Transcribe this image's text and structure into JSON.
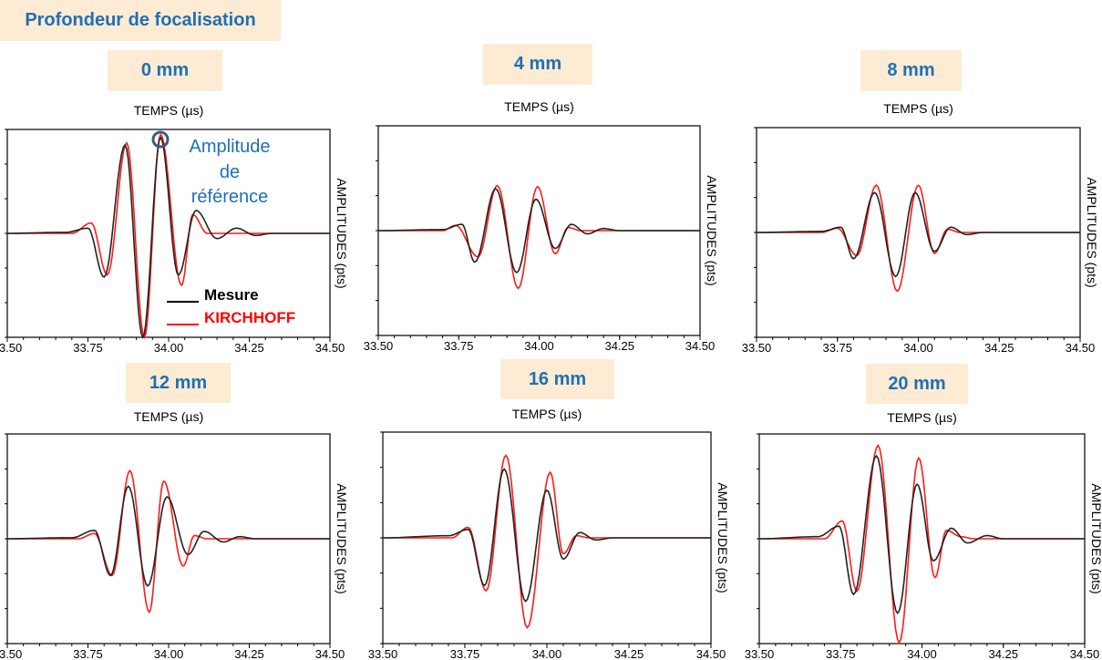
{
  "title": "Profondeur de focalisation",
  "colors": {
    "mesure": "#222222",
    "kirchhoff": "#ff1a1a",
    "label_bg": "#fdebd3",
    "label_text": "#1f6fb5",
    "annotation": "#1f6fb5",
    "circle": "#3d5a80"
  },
  "annotation": {
    "line1": "Amplitude",
    "line2": "de",
    "line3": "référence"
  },
  "legend": {
    "mesure": "Mesure",
    "kirchhoff": "KIRCHHOFF"
  },
  "chart_data": [
    {
      "type": "line",
      "label": "0 mm",
      "xlabel": "TEMPS (µs)",
      "ylabel": "AMPLITUDES (pts)",
      "xlim": [
        33.5,
        34.5
      ],
      "xticks": [
        "33.50",
        "33.75",
        "34.00",
        "34.25",
        "34.50"
      ],
      "ylim": [
        -1,
        1
      ],
      "series": [
        {
          "name": "Mesure",
          "points": [
            [
              33.5,
              0
            ],
            [
              33.68,
              0.01
            ],
            [
              33.75,
              0.05
            ],
            [
              33.8,
              -0.42
            ],
            [
              33.865,
              0.85
            ],
            [
              33.92,
              -1.0
            ],
            [
              33.975,
              0.92
            ],
            [
              34.03,
              -0.4
            ],
            [
              34.085,
              0.22
            ],
            [
              34.15,
              -0.05
            ],
            [
              34.21,
              0.05
            ],
            [
              34.27,
              -0.02
            ],
            [
              34.32,
              0
            ],
            [
              34.5,
              0
            ]
          ]
        },
        {
          "name": "KIRCHHOFF",
          "points": [
            [
              33.5,
              0
            ],
            [
              33.7,
              0
            ],
            [
              33.76,
              0.1
            ],
            [
              33.81,
              -0.4
            ],
            [
              33.87,
              0.87
            ],
            [
              33.925,
              -1.0
            ],
            [
              33.975,
              0.95
            ],
            [
              34.04,
              -0.5
            ],
            [
              34.075,
              0.18
            ],
            [
              34.12,
              0
            ],
            [
              34.5,
              0
            ]
          ]
        }
      ]
    },
    {
      "type": "line",
      "label": "4 mm",
      "xlabel": "TEMPS (µs)",
      "ylabel": "AMPLITUDES (pts)",
      "xlim": [
        33.5,
        34.5
      ],
      "xticks": [
        "33.50",
        "33.75",
        "34.00",
        "34.25",
        "34.50"
      ],
      "ylim": [
        -1,
        1
      ],
      "series": [
        {
          "name": "Mesure",
          "points": [
            [
              33.5,
              0
            ],
            [
              33.7,
              0.01
            ],
            [
              33.76,
              0.06
            ],
            [
              33.8,
              -0.3
            ],
            [
              33.865,
              0.4
            ],
            [
              33.93,
              -0.4
            ],
            [
              33.99,
              0.3
            ],
            [
              34.05,
              -0.17
            ],
            [
              34.1,
              0.06
            ],
            [
              34.15,
              -0.03
            ],
            [
              34.2,
              0.02
            ],
            [
              34.25,
              0
            ],
            [
              34.5,
              0
            ]
          ]
        },
        {
          "name": "KIRCHHOFF",
          "points": [
            [
              33.5,
              0
            ],
            [
              33.7,
              0
            ],
            [
              33.74,
              0.05
            ],
            [
              33.81,
              -0.25
            ],
            [
              33.87,
              0.43
            ],
            [
              33.935,
              -0.55
            ],
            [
              33.995,
              0.42
            ],
            [
              34.05,
              -0.22
            ],
            [
              34.09,
              0.03
            ],
            [
              34.13,
              0
            ],
            [
              34.5,
              0
            ]
          ]
        }
      ]
    },
    {
      "type": "line",
      "label": "8 mm",
      "xlabel": "TEMPS (µs)",
      "ylabel": "AMPLITUDES (pts)",
      "xlim": [
        33.5,
        34.5
      ],
      "xticks": [
        "33.50",
        "33.75",
        "34.00",
        "34.25",
        "34.50"
      ],
      "ylim": [
        -1,
        1
      ],
      "series": [
        {
          "name": "Mesure",
          "points": [
            [
              33.5,
              0
            ],
            [
              33.7,
              0.01
            ],
            [
              33.76,
              0.05
            ],
            [
              33.8,
              -0.25
            ],
            [
              33.865,
              0.38
            ],
            [
              33.93,
              -0.42
            ],
            [
              33.99,
              0.38
            ],
            [
              34.05,
              -0.18
            ],
            [
              34.1,
              0.05
            ],
            [
              34.15,
              -0.02
            ],
            [
              34.2,
              0
            ],
            [
              34.5,
              0
            ]
          ]
        },
        {
          "name": "KIRCHHOFF",
          "points": [
            [
              33.5,
              0
            ],
            [
              33.7,
              0
            ],
            [
              33.75,
              0.04
            ],
            [
              33.81,
              -0.22
            ],
            [
              33.87,
              0.45
            ],
            [
              33.935,
              -0.56
            ],
            [
              34.0,
              0.45
            ],
            [
              34.05,
              -0.2
            ],
            [
              34.09,
              0.03
            ],
            [
              34.13,
              0
            ],
            [
              34.5,
              0
            ]
          ]
        }
      ]
    },
    {
      "type": "line",
      "label": "12 mm",
      "xlabel": "TEMPS (µs)",
      "ylabel": "AMPLITUDES (pts)",
      "xlim": [
        33.5,
        34.5
      ],
      "xticks": [
        "33.50",
        "33.75",
        "34.00",
        "34.25",
        "34.50"
      ],
      "ylim": [
        -1,
        1
      ],
      "series": [
        {
          "name": "Mesure",
          "points": [
            [
              33.5,
              0
            ],
            [
              33.7,
              0.01
            ],
            [
              33.77,
              0.08
            ],
            [
              33.82,
              -0.35
            ],
            [
              33.875,
              0.5
            ],
            [
              33.935,
              -0.45
            ],
            [
              33.995,
              0.4
            ],
            [
              34.06,
              -0.15
            ],
            [
              34.11,
              0.07
            ],
            [
              34.17,
              -0.03
            ],
            [
              34.22,
              0.02
            ],
            [
              34.27,
              0
            ],
            [
              34.5,
              0
            ]
          ]
        },
        {
          "name": "KIRCHHOFF",
          "points": [
            [
              33.5,
              0
            ],
            [
              33.72,
              0
            ],
            [
              33.77,
              0.05
            ],
            [
              33.825,
              -0.35
            ],
            [
              33.88,
              0.65
            ],
            [
              33.94,
              -0.7
            ],
            [
              33.985,
              0.55
            ],
            [
              34.045,
              -0.26
            ],
            [
              34.08,
              0.03
            ],
            [
              34.12,
              0
            ],
            [
              34.5,
              0
            ]
          ]
        }
      ]
    },
    {
      "type": "line",
      "label": "16 mm",
      "xlabel": "TEMPS (µs)",
      "ylabel": "AMPLITUDES (pts)",
      "xlim": [
        33.5,
        34.5
      ],
      "xticks": [
        "33.50",
        "33.75",
        "34.00",
        "34.25",
        "34.50"
      ],
      "ylim": [
        -1,
        1
      ],
      "series": [
        {
          "name": "Mesure",
          "points": [
            [
              33.5,
              0
            ],
            [
              33.7,
              0.02
            ],
            [
              33.76,
              0.08
            ],
            [
              33.81,
              -0.45
            ],
            [
              33.87,
              0.65
            ],
            [
              33.935,
              -0.6
            ],
            [
              34.0,
              0.45
            ],
            [
              34.05,
              -0.2
            ],
            [
              34.1,
              0.05
            ],
            [
              34.15,
              -0.02
            ],
            [
              34.2,
              0
            ],
            [
              34.5,
              0
            ]
          ]
        },
        {
          "name": "KIRCHHOFF",
          "points": [
            [
              33.5,
              0
            ],
            [
              33.71,
              0
            ],
            [
              33.76,
              0.1
            ],
            [
              33.815,
              -0.5
            ],
            [
              33.875,
              0.78
            ],
            [
              33.94,
              -0.85
            ],
            [
              34.01,
              0.62
            ],
            [
              34.05,
              -0.15
            ],
            [
              34.09,
              0.02
            ],
            [
              34.13,
              0
            ],
            [
              34.5,
              0
            ]
          ]
        }
      ]
    },
    {
      "type": "line",
      "label": "20 mm",
      "xlabel": "TEMPS (µs)",
      "ylabel": "AMPLITUDES (pts)",
      "xlim": [
        33.5,
        34.5
      ],
      "xticks": [
        "33.50",
        "33.75",
        "34.00",
        "34.25",
        "34.50"
      ],
      "ylim": [
        -1,
        1
      ],
      "series": [
        {
          "name": "Mesure",
          "points": [
            [
              33.5,
              0
            ],
            [
              33.68,
              0.02
            ],
            [
              33.745,
              0.12
            ],
            [
              33.79,
              -0.53
            ],
            [
              33.86,
              0.79
            ],
            [
              33.925,
              -0.71
            ],
            [
              33.985,
              0.52
            ],
            [
              34.035,
              -0.21
            ],
            [
              34.09,
              0.1
            ],
            [
              34.14,
              -0.04
            ],
            [
              34.2,
              0.03
            ],
            [
              34.25,
              0
            ],
            [
              34.5,
              0
            ]
          ]
        },
        {
          "name": "KIRCHHOFF",
          "points": [
            [
              33.5,
              0
            ],
            [
              33.7,
              0
            ],
            [
              33.755,
              0.17
            ],
            [
              33.8,
              -0.5
            ],
            [
              33.865,
              0.89
            ],
            [
              33.93,
              -0.99
            ],
            [
              33.99,
              0.77
            ],
            [
              34.04,
              -0.37
            ],
            [
              34.075,
              0.08
            ],
            [
              34.12,
              0.02
            ],
            [
              34.16,
              0
            ],
            [
              34.5,
              0
            ]
          ]
        }
      ]
    }
  ]
}
